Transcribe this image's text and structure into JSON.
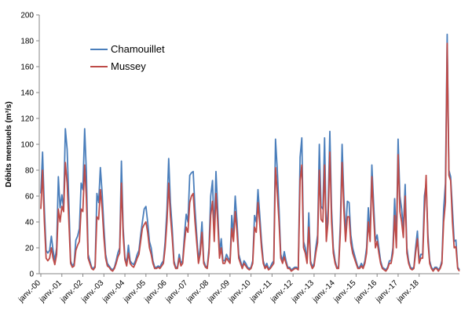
{
  "chart_data": {
    "type": "line",
    "title": "",
    "xlabel": "",
    "ylabel": "Débits mensuels (m³/s)",
    "ylim": [
      0,
      200
    ],
    "yticks": [
      0,
      20,
      40,
      60,
      80,
      100,
      120,
      140,
      160,
      180,
      200
    ],
    "grid": false,
    "legend_position": "top-left",
    "x_start": "janv.-00",
    "x_tick_labels": [
      "janv.-00",
      "janv.-01",
      "janv.-02",
      "janv.-03",
      "janv.-04",
      "janv.-05",
      "janv.-06",
      "janv.-07",
      "janv.-08",
      "janv.-09",
      "janv.-10",
      "janv.-11",
      "janv.-12",
      "janv.-13",
      "janv.-14",
      "janv.-15",
      "janv.-16",
      "janv.-17",
      "janv.-18"
    ],
    "series": [
      {
        "name": "Chamouillet",
        "color": "#4a7ebb",
        "values": [
          62,
          94,
          50,
          18,
          16,
          18,
          29,
          18,
          10,
          20,
          75,
          51,
          61,
          50,
          112,
          96,
          55,
          10,
          6,
          8,
          26,
          29,
          35,
          70,
          65,
          112,
          78,
          15,
          10,
          5,
          4,
          6,
          62,
          55,
          82,
          62,
          36,
          15,
          8,
          6,
          4,
          3,
          5,
          10,
          16,
          20,
          87,
          36,
          13,
          8,
          22,
          10,
          8,
          7,
          10,
          15,
          18,
          30,
          40,
          50,
          52,
          40,
          25,
          20,
          10,
          5,
          5,
          6,
          5,
          8,
          10,
          25,
          50,
          89,
          55,
          35,
          10,
          5,
          5,
          15,
          8,
          10,
          30,
          46,
          40,
          76,
          78,
          79,
          50,
          30,
          10,
          20,
          40,
          10,
          6,
          5,
          20,
          60,
          72,
          30,
          79,
          50,
          16,
          27,
          10,
          10,
          15,
          12,
          10,
          45,
          30,
          60,
          40,
          15,
          10,
          5,
          10,
          8,
          5,
          4,
          5,
          10,
          45,
          40,
          65,
          45,
          25,
          10,
          5,
          8,
          4,
          5,
          8,
          10,
          104,
          80,
          50,
          15,
          10,
          17,
          10,
          5,
          5,
          3,
          4,
          5,
          5,
          4,
          90,
          105,
          25,
          20,
          10,
          47,
          10,
          5,
          8,
          20,
          30,
          100,
          52,
          50,
          105,
          30,
          50,
          110,
          50,
          20,
          10,
          5,
          5,
          40,
          100,
          60,
          30,
          56,
          55,
          30,
          20,
          15,
          10,
          5,
          5,
          8,
          5,
          10,
          20,
          51,
          30,
          84,
          55,
          25,
          30,
          20,
          10,
          5,
          4,
          3,
          5,
          10,
          10,
          20,
          58,
          25,
          104,
          60,
          50,
          35,
          69,
          20,
          10,
          5,
          4,
          5,
          20,
          33,
          10,
          15,
          15,
          60,
          70,
          30,
          10,
          5,
          3,
          5,
          5,
          3,
          5,
          10,
          50,
          70,
          185,
          80,
          75,
          50,
          25,
          26,
          5,
          3
        ]
      },
      {
        "name": "Mussey",
        "color": "#be4b48",
        "values": [
          50,
          80,
          40,
          12,
          10,
          12,
          20,
          12,
          7,
          15,
          50,
          40,
          52,
          48,
          86,
          70,
          40,
          8,
          5,
          6,
          18,
          22,
          25,
          50,
          48,
          84,
          58,
          12,
          8,
          4,
          3,
          5,
          44,
          42,
          65,
          50,
          28,
          12,
          6,
          5,
          3,
          2,
          4,
          8,
          13,
          16,
          70,
          30,
          11,
          6,
          16,
          8,
          6,
          5,
          8,
          12,
          15,
          25,
          35,
          38,
          40,
          32,
          20,
          15,
          8,
          4,
          4,
          5,
          4,
          6,
          8,
          20,
          40,
          70,
          45,
          28,
          8,
          4,
          4,
          12,
          6,
          8,
          24,
          36,
          32,
          55,
          60,
          62,
          40,
          24,
          8,
          15,
          32,
          8,
          5,
          4,
          16,
          45,
          56,
          25,
          62,
          40,
          12,
          20,
          8,
          8,
          12,
          10,
          8,
          35,
          25,
          48,
          32,
          12,
          8,
          4,
          8,
          6,
          4,
          3,
          4,
          8,
          36,
          32,
          55,
          38,
          20,
          8,
          4,
          6,
          3,
          4,
          6,
          8,
          82,
          62,
          40,
          12,
          8,
          13,
          8,
          4,
          4,
          2,
          3,
          4,
          4,
          3,
          72,
          84,
          20,
          16,
          8,
          36,
          8,
          4,
          6,
          16,
          24,
          80,
          42,
          40,
          84,
          25,
          40,
          94,
          40,
          16,
          8,
          4,
          4,
          32,
          86,
          50,
          25,
          44,
          44,
          24,
          16,
          12,
          8,
          4,
          4,
          6,
          4,
          8,
          16,
          40,
          25,
          75,
          45,
          20,
          25,
          16,
          8,
          4,
          3,
          2,
          4,
          8,
          8,
          16,
          45,
          20,
          92,
          48,
          40,
          28,
          60,
          16,
          8,
          4,
          3,
          4,
          16,
          27,
          8,
          12,
          12,
          48,
          76,
          25,
          8,
          4,
          2,
          4,
          4,
          2,
          4,
          8,
          40,
          55,
          178,
          76,
          72,
          40,
          20,
          21,
          4,
          2
        ]
      }
    ]
  }
}
